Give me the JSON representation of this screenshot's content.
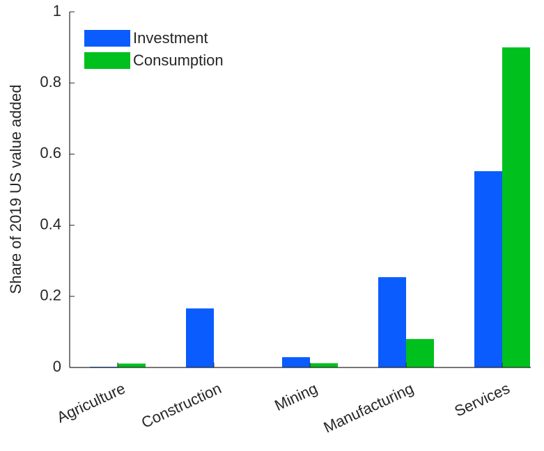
{
  "chart_data": {
    "type": "bar",
    "ylabel": "Share of 2019 US value added",
    "categories": [
      "Agriculture",
      "Construction",
      "Mining",
      "Manufacturing",
      "Services"
    ],
    "series": [
      {
        "name": "Investment",
        "color": "#0a5cff",
        "values": [
          0.002,
          0.166,
          0.029,
          0.254,
          0.552
        ]
      },
      {
        "name": "Consumption",
        "color": "#00c01e",
        "values": [
          0.011,
          0.001,
          0.012,
          0.08,
          0.9
        ]
      }
    ],
    "ylim": [
      0,
      1
    ],
    "yticks": [
      0,
      0.2,
      0.4,
      0.6,
      0.8,
      1
    ],
    "grid": false,
    "legend": "top-left"
  }
}
